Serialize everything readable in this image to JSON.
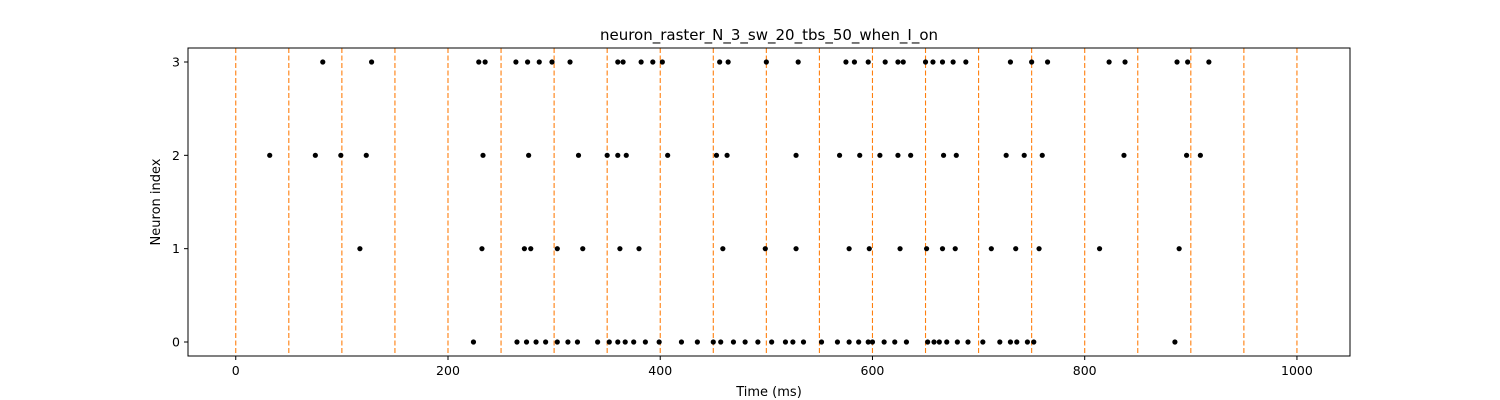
{
  "chart_data": {
    "type": "scatter",
    "title": "neuron_raster_N_3_sw_20_tbs_50_when_I_on",
    "xlabel": "Time (ms)",
    "ylabel": "Neuron index",
    "xlim": [
      -45,
      1050
    ],
    "ylim": [
      -0.15,
      3.15
    ],
    "xticks": [
      0,
      200,
      400,
      600,
      800,
      1000
    ],
    "yticks": [
      0,
      1,
      2,
      3
    ],
    "grid": false,
    "legend": "none",
    "vlines": {
      "color": "#ff7f0e",
      "style": "dashed",
      "x": [
        0,
        50,
        100,
        150,
        200,
        250,
        300,
        350,
        400,
        450,
        500,
        550,
        600,
        650,
        700,
        750,
        800,
        850,
        900,
        950,
        1000
      ]
    },
    "marker_color": "#000000",
    "series": [
      {
        "neuron": 0,
        "x": [
          224,
          265,
          274,
          283,
          292,
          303,
          313,
          322,
          341,
          352,
          360,
          367,
          375,
          386,
          399,
          420,
          435,
          450,
          457,
          469,
          480,
          492,
          505,
          518,
          525,
          535,
          552,
          567,
          578,
          587,
          596,
          600,
          611,
          621,
          632,
          652,
          658,
          663,
          670,
          680,
          690,
          704,
          720,
          730,
          736,
          746,
          752,
          885
        ]
      },
      {
        "neuron": 1,
        "x": [
          117,
          232,
          272,
          278,
          303,
          327,
          362,
          380,
          459,
          499,
          528,
          578,
          597,
          626,
          651,
          666,
          678,
          712,
          735,
          757,
          814,
          889
        ]
      },
      {
        "neuron": 2,
        "x": [
          32,
          75,
          99,
          123,
          233,
          276,
          323,
          350,
          360,
          368,
          407,
          453,
          463,
          528,
          569,
          588,
          607,
          624,
          636,
          667,
          679,
          726,
          743,
          760,
          837,
          896,
          909
        ]
      },
      {
        "neuron": 3,
        "x": [
          82,
          128,
          229,
          235,
          264,
          275,
          286,
          298,
          315,
          360,
          365,
          382,
          393,
          402,
          456,
          464,
          500,
          530,
          575,
          583,
          596,
          612,
          624,
          629,
          650,
          657,
          666,
          676,
          688,
          730,
          750,
          765,
          823,
          838,
          887,
          897,
          917
        ]
      }
    ]
  }
}
